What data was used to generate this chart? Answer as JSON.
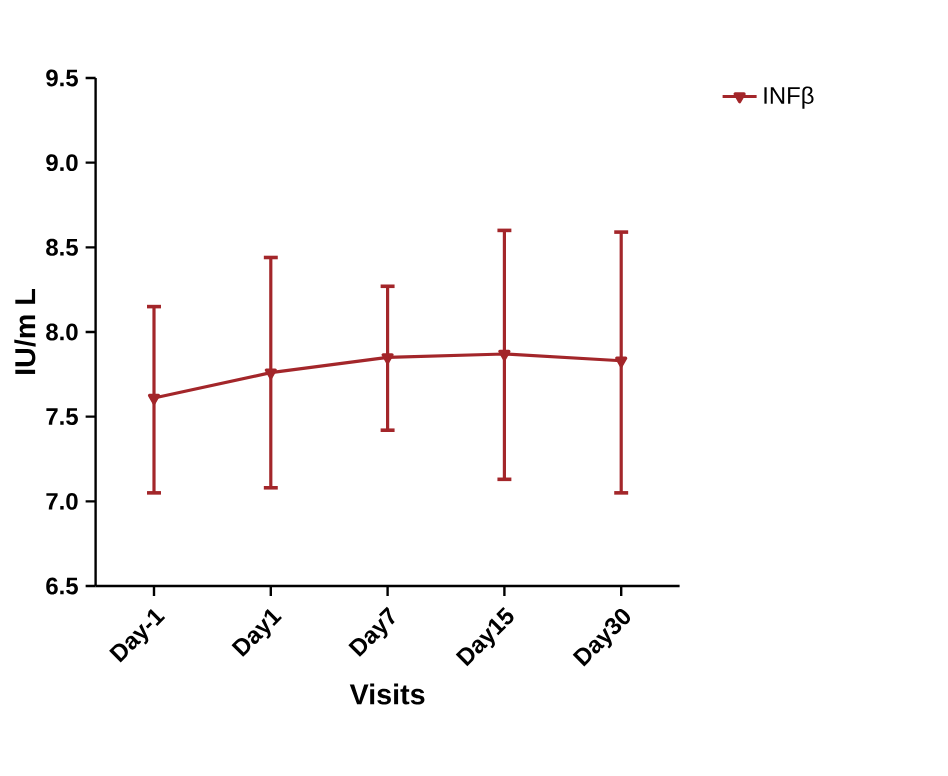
{
  "chart_data": {
    "type": "line",
    "xlabel": "Visits",
    "ylabel": "IU/m L",
    "categories": [
      "Day-1",
      "Day1",
      "Day7",
      "Day15",
      "Day30"
    ],
    "series": [
      {
        "name": "INFβ",
        "color": "#a3262a",
        "values": [
          7.61,
          7.76,
          7.85,
          7.87,
          7.83
        ],
        "errors": [
          [
            7.05,
            8.15
          ],
          [
            7.08,
            8.44
          ],
          [
            7.42,
            8.27
          ],
          [
            7.13,
            8.6
          ],
          [
            7.05,
            8.59
          ]
        ]
      }
    ],
    "ylim": [
      6.5,
      9.5
    ],
    "yticks": [
      {
        "value": 6.5,
        "label": "6.5"
      },
      {
        "value": 7,
        "label": "7.0"
      },
      {
        "value": 7.5,
        "label": "7.5"
      },
      {
        "value": 8,
        "label": "8.0"
      },
      {
        "value": 8.5,
        "label": "8.5"
      },
      {
        "value": 9,
        "label": "9.0"
      },
      {
        "value": 9.5,
        "label": "9.5"
      }
    ],
    "marker": "triangle",
    "line_style": "solid",
    "legend": "top right",
    "grid": false
  }
}
